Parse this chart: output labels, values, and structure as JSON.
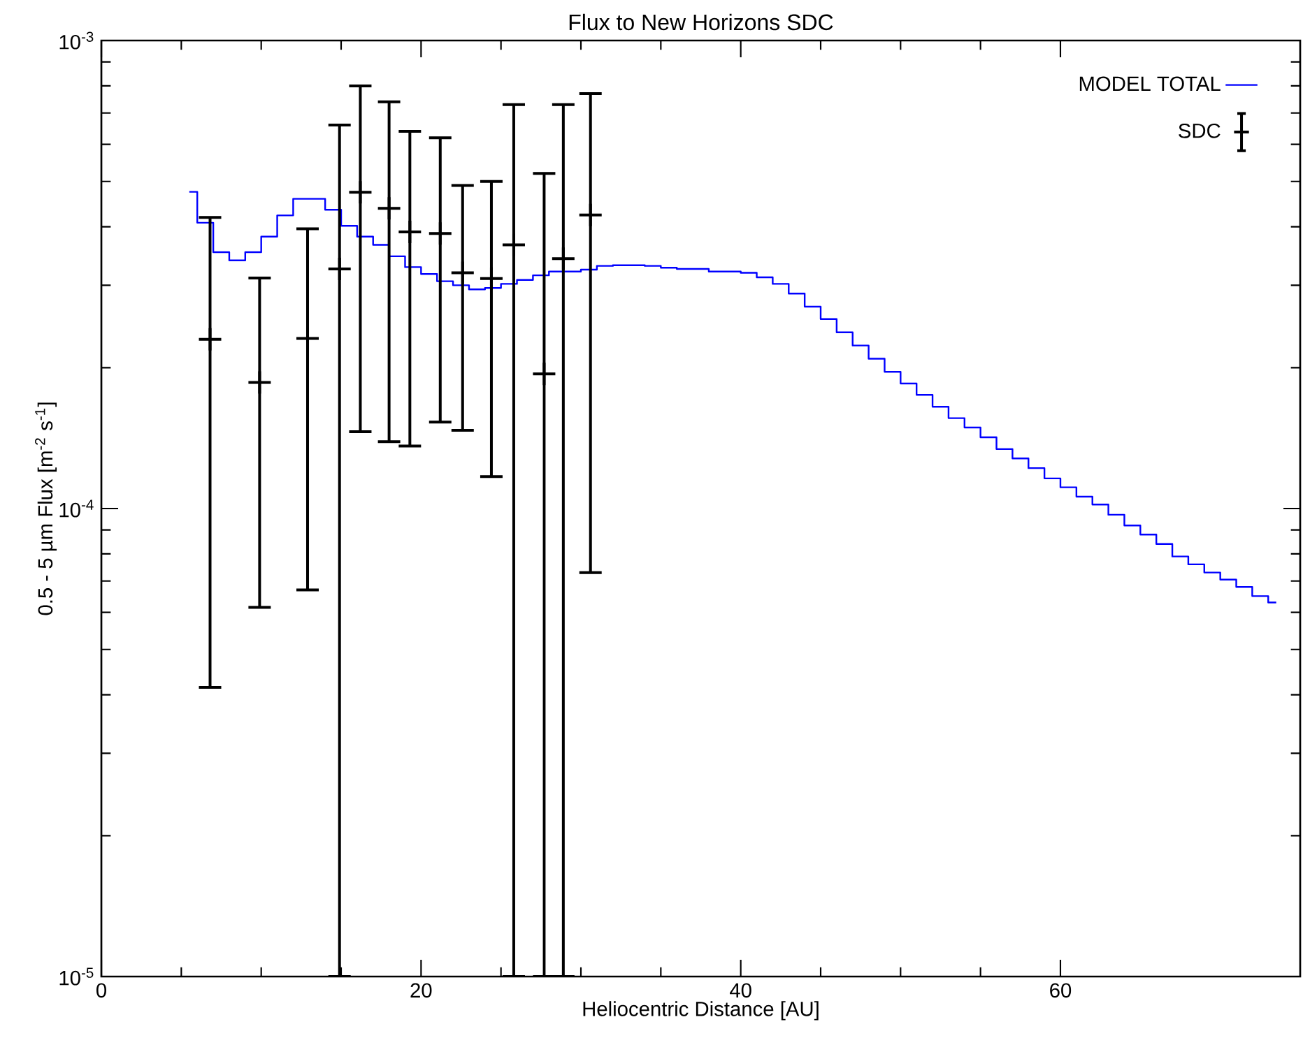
{
  "chart_data": {
    "type": "step",
    "title": "Flux to New Horizons SDC",
    "xlabel": "Heliocentric Distance [AU]",
    "ylabel": "0.5 - 5 µm Flux [m$^{-2}$ s$^{-1}$]",
    "log": "y",
    "xlim": [
      0,
      75
    ],
    "ylim": [
      1e-05,
      0.001
    ],
    "xticks": [
      0,
      20,
      40,
      60
    ],
    "yticks": [
      {
        "value": 1e-05,
        "label": "10$^{-5}$"
      },
      {
        "value": 0.0001,
        "label": "10$^{-4}$"
      },
      {
        "value": 0.001,
        "label": "10$^{-3}$"
      }
    ],
    "legend": "top right",
    "series": [
      {
        "name": "MODEL TOTAL",
        "color": "#0000ff",
        "line_style": "solid",
        "marker": "none",
        "x": [
          5.5,
          6.5,
          7.5,
          8.5,
          9.5,
          10.5,
          11.5,
          12.5,
          13.5,
          14.5,
          15.5,
          16.5,
          17.5,
          18.5,
          19.5,
          20.5,
          21.5,
          22.5,
          23.5,
          24.5,
          25.5,
          26.5,
          27.5,
          28.5,
          29.5,
          30.5,
          31.5,
          32.5,
          33.5,
          34.5,
          35.5,
          36.5,
          37.5,
          38.5,
          39.5,
          40.5,
          41.5,
          42.5,
          43.5,
          44.5,
          45.5,
          46.5,
          47.5,
          48.5,
          49.5,
          50.5,
          51.5,
          52.5,
          53.5,
          54.5,
          55.5,
          56.5,
          57.5,
          58.5,
          59.5,
          60.5,
          61.5,
          62.5,
          63.5,
          64.5,
          65.5,
          66.5,
          67.5,
          68.5,
          69.5,
          70.5,
          71.5,
          72.5,
          73.5
        ],
        "values": [
          0.000475,
          0.000408,
          0.000353,
          0.000339,
          0.000353,
          0.000381,
          0.000423,
          0.000459,
          0.000459,
          0.000435,
          0.000402,
          0.000381,
          0.000366,
          0.000346,
          0.000328,
          0.000317,
          0.000306,
          0.0003,
          0.000294,
          0.000296,
          0.000302,
          0.000308,
          0.000315,
          0.000321,
          0.000321,
          0.000324,
          0.00033,
          0.000331,
          0.000331,
          0.00033,
          0.000327,
          0.000325,
          0.000325,
          0.000321,
          0.000321,
          0.000319,
          0.000312,
          0.000302,
          0.000288,
          0.00027,
          0.000254,
          0.000238,
          0.000223,
          0.000209,
          0.000196,
          0.000185,
          0.000175,
          0.000165,
          0.000156,
          0.000149,
          0.000142,
          0.000134,
          0.000128,
          0.000122,
          0.000116,
          0.000111,
          0.000106,
          0.000102,
          9.7e-05,
          9.2e-05,
          8.8e-05,
          8.4e-05,
          7.9e-05,
          7.6e-05,
          7.3e-05,
          7.05e-05,
          6.8e-05,
          6.5e-05,
          6.3e-05
        ]
      },
      {
        "name": "SDC",
        "type": "scatter",
        "color": "#000000",
        "marker": "cross",
        "x": [
          6.8,
          9.9,
          12.9,
          14.9,
          16.2,
          18.0,
          19.3,
          21.2,
          22.6,
          24.4,
          25.8,
          27.7,
          28.9,
          30.6
        ],
        "values": [
          0.00023,
          0.000186,
          0.000231,
          0.000325,
          0.000474,
          0.000438,
          0.00039,
          0.000387,
          0.000319,
          0.00031,
          0.000366,
          0.000194,
          0.000342,
          0.000424
        ],
        "errors": [
          [
            4.15e-05,
            0.000419
          ],
          [
            6.15e-05,
            0.000311
          ],
          [
            6.7e-05,
            0.000396
          ],
          [
            1e-05,
            0.00066
          ],
          [
            0.000146,
            0.0008
          ],
          [
            0.000139,
            0.00074
          ],
          [
            0.000136,
            0.00064
          ],
          [
            0.000153,
            0.00062
          ],
          [
            0.000147,
            0.00049
          ],
          [
            0.000117,
            0.0005
          ],
          [
            1e-05,
            0.00073
          ],
          [
            1e-05,
            0.00052
          ],
          [
            1e-05,
            0.00073
          ],
          [
            7.3e-05,
            0.00077
          ]
        ]
      }
    ]
  }
}
